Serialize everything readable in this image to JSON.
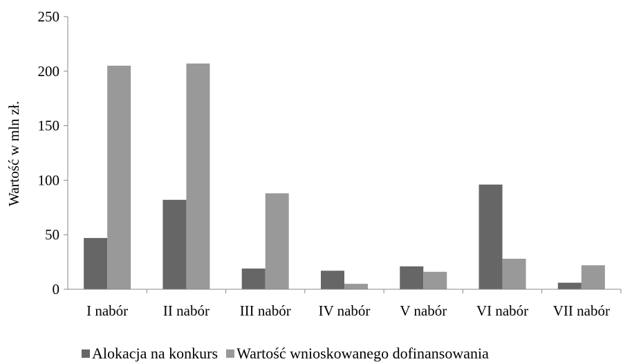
{
  "chart_data": {
    "type": "bar",
    "title": "",
    "xlabel": "",
    "ylabel": "Wartość w mln zł.",
    "ylim": [
      0,
      250
    ],
    "yticks": [
      "0",
      "50",
      "100",
      "150",
      "200",
      "250"
    ],
    "categories": [
      "I nabór",
      "II nabór",
      "III nabór",
      "IV nabór",
      "V nabór",
      "VI nabór",
      "VII nabór"
    ],
    "grid": false,
    "legend_position": "bottom",
    "series": [
      {
        "name": "Alokacja na konkurs",
        "color": "#666666",
        "values": [
          47,
          82,
          19,
          17,
          21,
          96,
          6
        ]
      },
      {
        "name": "Wartość wnioskowanego dofinansowania",
        "color": "#999999",
        "values": [
          205,
          207,
          88,
          5,
          16,
          28,
          22
        ]
      }
    ]
  }
}
